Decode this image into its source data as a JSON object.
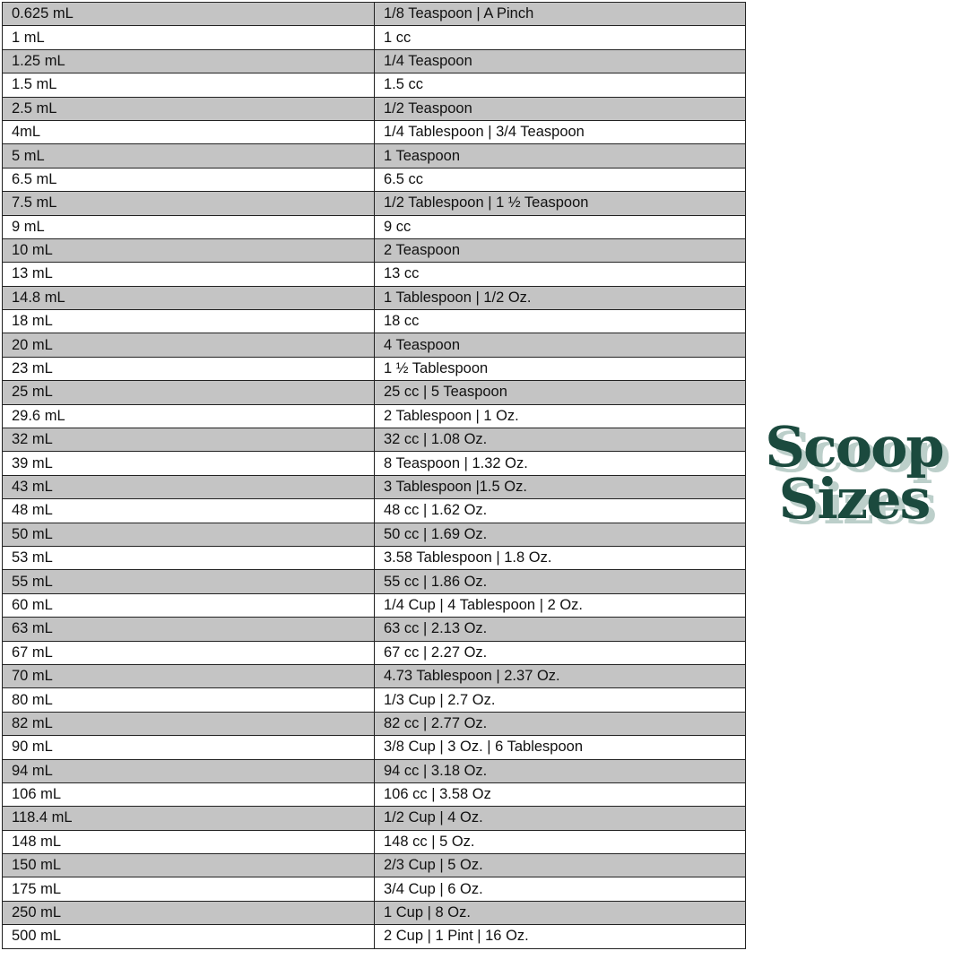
{
  "logo": {
    "line1": "Scoop",
    "line2": "Sizes",
    "color": "#1b4a3e",
    "shadow_color": "#bccfca"
  },
  "table": {
    "rows": [
      [
        "0.625 mL",
        "1/8 Teaspoon | A Pinch"
      ],
      [
        "1 mL",
        "1 cc"
      ],
      [
        "1.25 mL",
        "1/4 Teaspoon"
      ],
      [
        "1.5 mL",
        "1.5 cc"
      ],
      [
        "2.5 mL",
        "1/2 Teaspoon"
      ],
      [
        "4mL",
        "1/4 Tablespoon | 3/4 Teaspoon"
      ],
      [
        "5 mL",
        "1 Teaspoon"
      ],
      [
        "6.5 mL",
        "6.5 cc"
      ],
      [
        "7.5 mL",
        "1/2 Tablespoon | 1 ½ Teaspoon"
      ],
      [
        "9 mL",
        "9 cc"
      ],
      [
        "10 mL",
        "2 Teaspoon"
      ],
      [
        "13 mL",
        "13 cc"
      ],
      [
        "14.8 mL",
        "1 Tablespoon | 1/2 Oz."
      ],
      [
        "18 mL",
        "18 cc"
      ],
      [
        "20 mL",
        "4 Teaspoon"
      ],
      [
        "23 mL",
        "1 ½ Tablespoon"
      ],
      [
        "25 mL",
        "25 cc | 5 Teaspoon"
      ],
      [
        "29.6 mL",
        "2 Tablespoon | 1 Oz."
      ],
      [
        "32 mL",
        "32 cc | 1.08 Oz."
      ],
      [
        "39 mL",
        "8 Teaspoon | 1.32 Oz."
      ],
      [
        "43 mL",
        "3 Tablespoon |1.5 Oz."
      ],
      [
        "48 mL",
        "48 cc | 1.62 Oz."
      ],
      [
        "50 mL",
        "50 cc | 1.69 Oz."
      ],
      [
        "53 mL",
        "3.58 Tablespoon | 1.8 Oz."
      ],
      [
        "55 mL",
        "55 cc | 1.86 Oz."
      ],
      [
        "60 mL",
        "1/4 Cup | 4 Tablespoon | 2 Oz."
      ],
      [
        "63 mL",
        "63 cc | 2.13 Oz."
      ],
      [
        "67 mL",
        "67 cc | 2.27 Oz."
      ],
      [
        "70 mL",
        "4.73 Tablespoon | 2.37 Oz."
      ],
      [
        "80 mL",
        "1/3 Cup | 2.7 Oz."
      ],
      [
        "82 mL",
        "82 cc | 2.77 Oz."
      ],
      [
        "90 mL",
        "3/8 Cup | 3 Oz. | 6 Tablespoon"
      ],
      [
        "94 mL",
        "94 cc | 3.18 Oz."
      ],
      [
        "106 mL",
        "106 cc | 3.58 Oz"
      ],
      [
        "118.4 mL",
        "1/2 Cup | 4 Oz."
      ],
      [
        "148 mL",
        "148 cc | 5 Oz."
      ],
      [
        "150 mL",
        "2/3 Cup | 5 Oz."
      ],
      [
        "175 mL",
        "3/4 Cup | 6 Oz."
      ],
      [
        "250 mL",
        "1 Cup | 8 Oz."
      ],
      [
        "500 mL",
        "2 Cup | 1 Pint | 16 Oz."
      ]
    ]
  }
}
